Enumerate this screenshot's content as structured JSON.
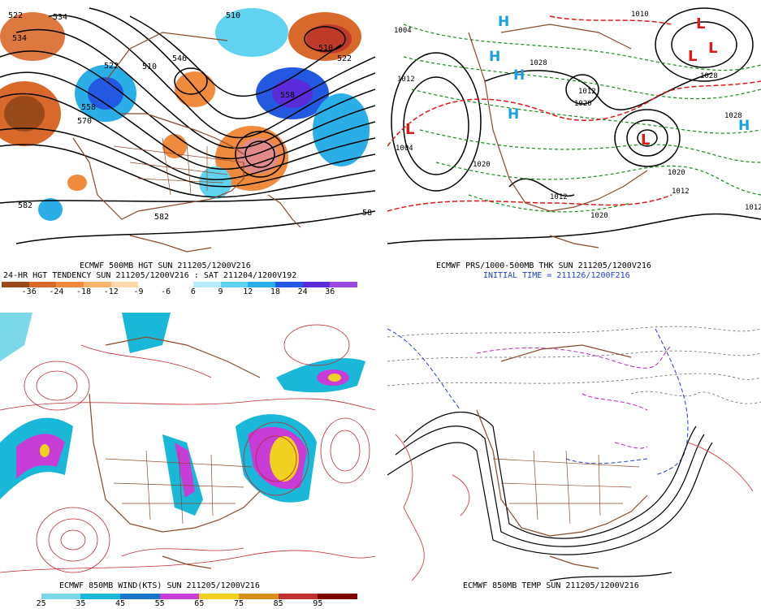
{
  "panels": {
    "top_left": {
      "caption_line1": "ECMWF 500MB HGT SUN 211205/1200V216",
      "caption_line2": "24-HR HGT TENDENCY SUN 211205/1200V216 : SAT 211204/1200V192",
      "colorbar": {
        "colors": [
          "#9a4a1a",
          "#d9692a",
          "#f08a3c",
          "#f7b46b",
          "#fbd9a8",
          "#ffffff",
          "#ffffff",
          "#b8ecfa",
          "#5fd3f0",
          "#29aee8",
          "#2358e0",
          "#5a2bd8",
          "#9a49e0"
        ],
        "ticks": [
          "-36",
          "-24",
          "-18",
          "-12",
          "-9",
          "-6",
          "6",
          "9",
          "12",
          "18",
          "24",
          "36"
        ]
      },
      "contour_labels": [
        "522",
        "534",
        "534",
        "510",
        "546",
        "522",
        "510",
        "558",
        "570",
        "582",
        "582",
        "510",
        "522",
        "558",
        "58"
      ]
    },
    "top_right": {
      "caption_line1": "ECMWF PRS/1000-500MB THK SUN 211205/1200V216",
      "caption_line2": "INITIAL TIME = 211126/1200F216",
      "highs": [
        "H",
        "H",
        "H",
        "H",
        "H"
      ],
      "lows": [
        "L",
        "L",
        "L",
        "L",
        "L"
      ],
      "isobar_labels": [
        "1004",
        "1012",
        "1020",
        "1028",
        "1012",
        "1020",
        "1028",
        "1012",
        "1020",
        "1004",
        "1012",
        "1020",
        "1012",
        "1028",
        "1010"
      ]
    },
    "bottom_left": {
      "caption": "ECMWF 850MB WIND(KTS) SUN 211205/1200V216",
      "colorbar": {
        "colors": [
          "#ffffff",
          "#7ad8e8",
          "#1ab8d8",
          "#1a78c8",
          "#c83cd8",
          "#f0d020",
          "#d8901c",
          "#c03030",
          "#800000"
        ],
        "ticks": [
          "25",
          "35",
          "45",
          "55",
          "65",
          "75",
          "85",
          "95"
        ]
      }
    },
    "bottom_right": {
      "caption": "ECMWF 850MB TEMP SUN 211205/1200V216"
    }
  },
  "colors": {
    "coast": "#8a4a2a",
    "height_contour": "#000000",
    "thickness_red": "#e01818",
    "thickness_green": "#1a8a1a",
    "high_blue": "#1aa0e0",
    "low_red": "#e01818",
    "streamline": "#c0282c",
    "temp_blue": "#1e3fd0",
    "temp_magenta": "#c020c8",
    "temp_red": "#e05050"
  }
}
